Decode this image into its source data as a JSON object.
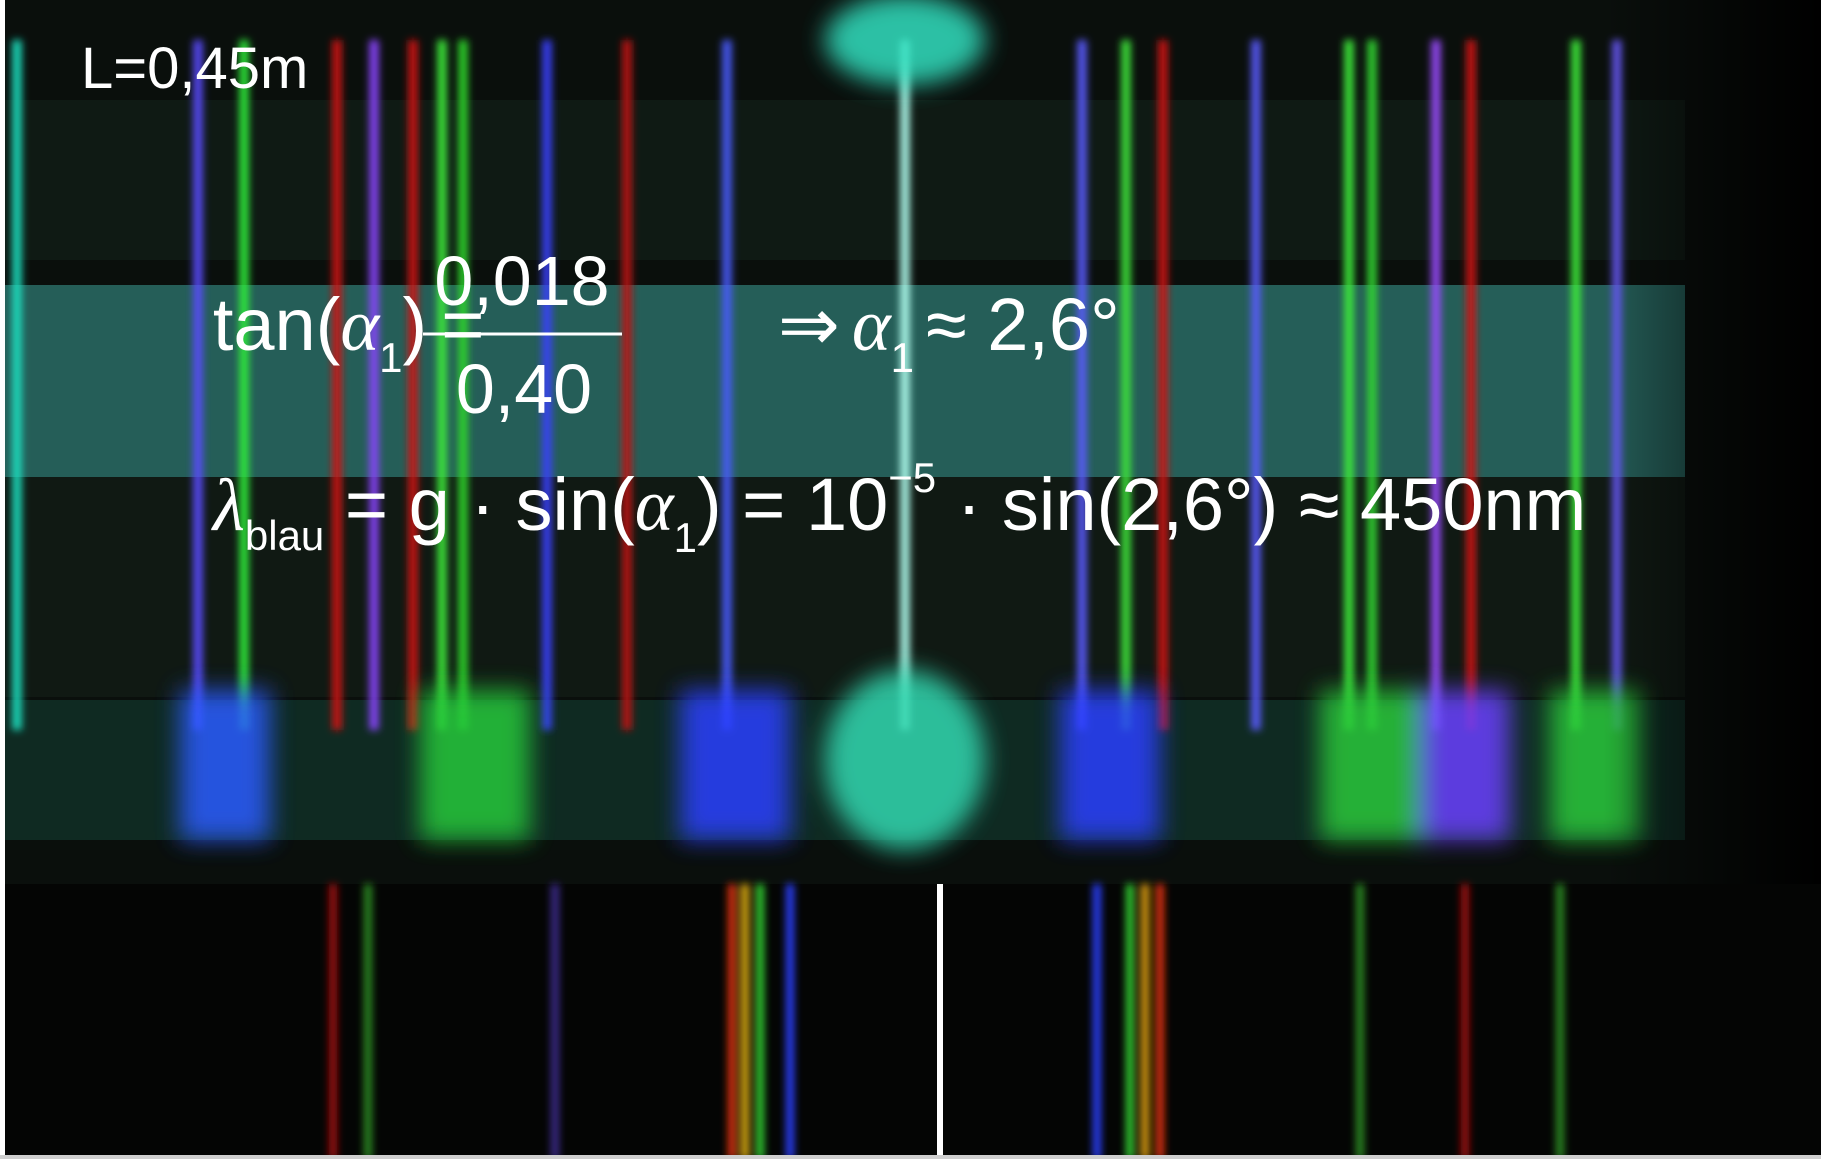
{
  "label": "L=0,45m",
  "equation_1": {
    "lhs": "tan(",
    "alpha": "α",
    "alpha_index": "1",
    "close": ")",
    "equals": "=",
    "numerator": "0,018",
    "denominator": "0,40",
    "implies": "⇒",
    "alpha_2": "α",
    "alpha_2_index": "1",
    "result": "≈ 2,6°"
  },
  "equation_2": {
    "lambda": "λ",
    "lambda_index": "blau",
    "middle": " = g · sin(",
    "alpha": "α",
    "alpha_index": "1",
    "power_base": ") = 10",
    "exponent": "−5",
    "result": " · sin(2,6°) ≈ 450nm"
  }
}
